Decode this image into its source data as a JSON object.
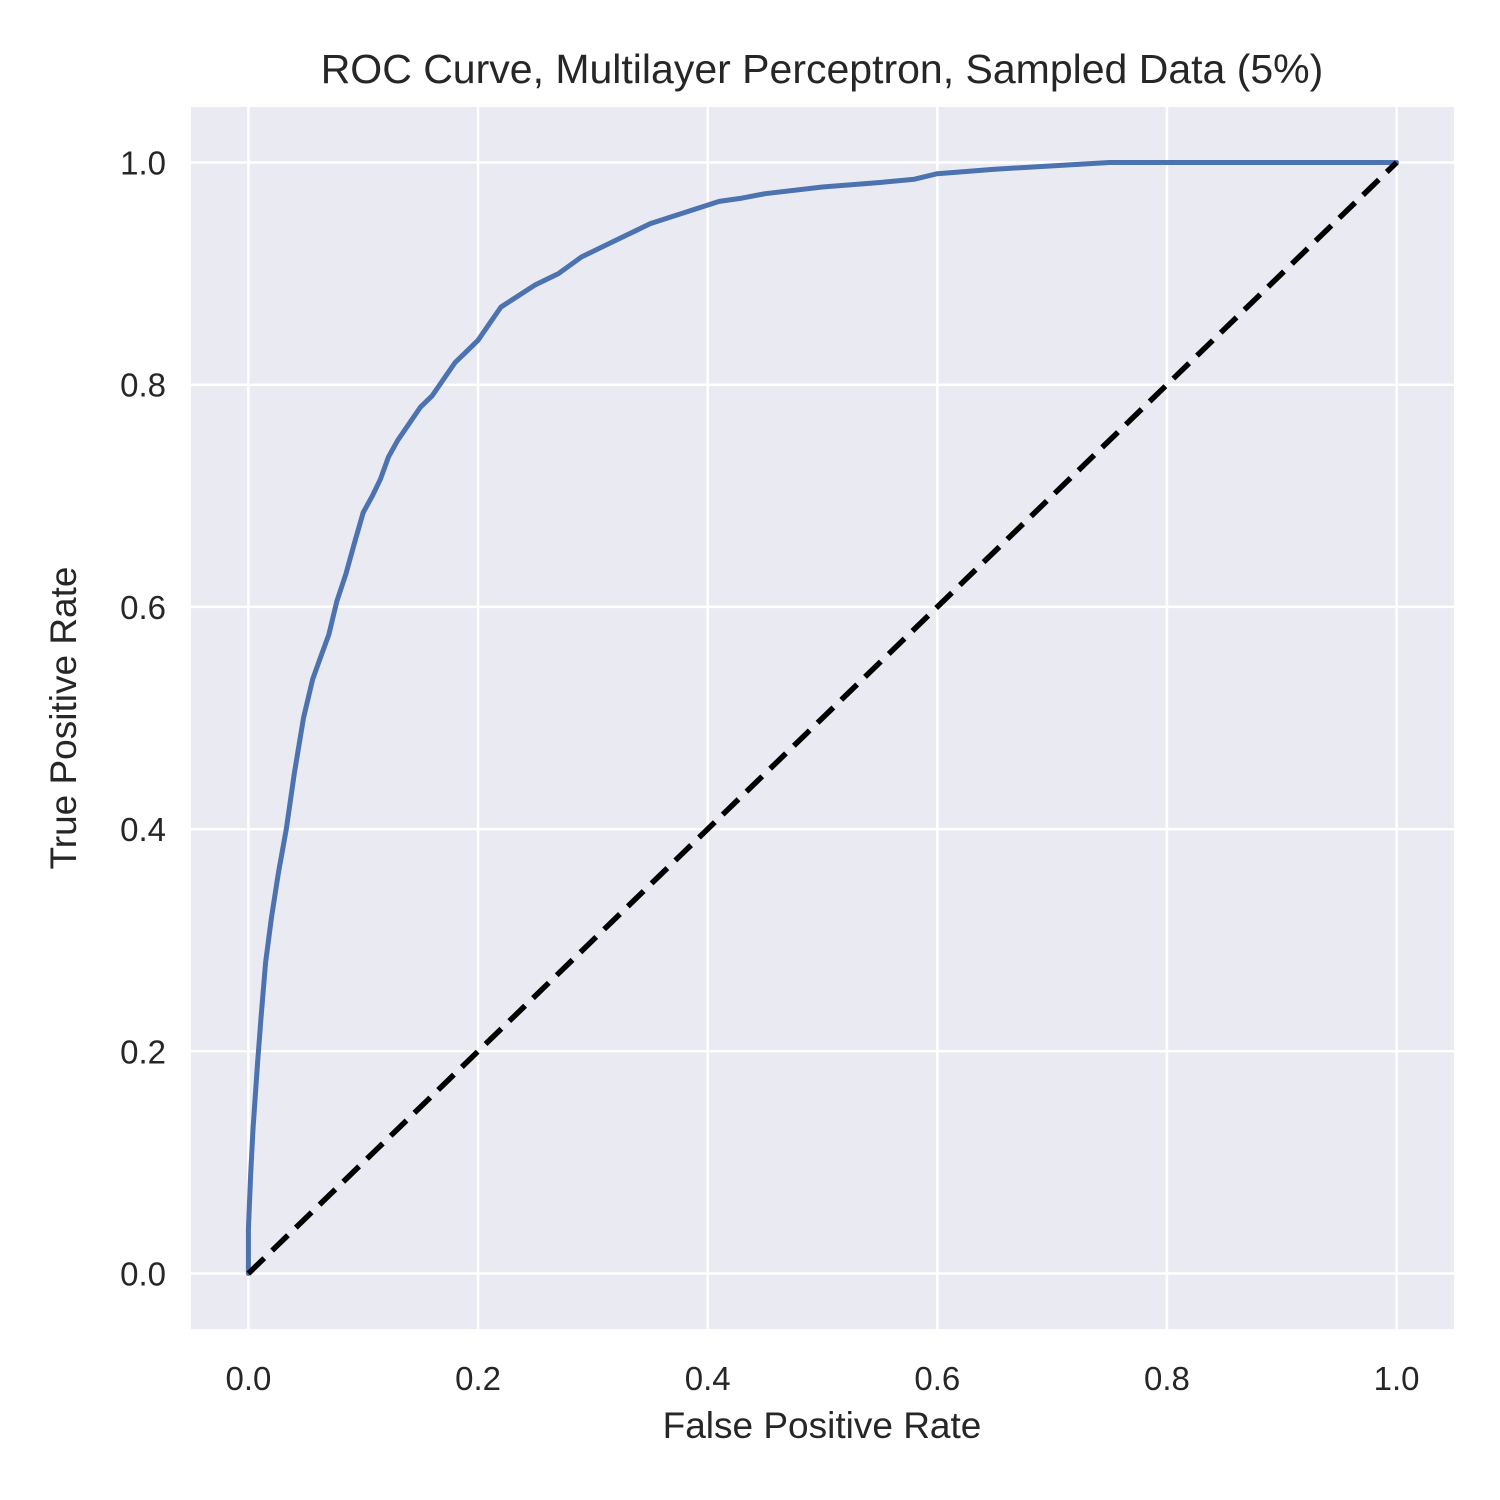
{
  "chart_data": {
    "type": "line",
    "title": "ROC Curve, Multilayer Perceptron, Sampled Data (5%)",
    "xlabel": "False Positive Rate",
    "ylabel": "True Positive Rate",
    "xlim": [
      -0.05,
      1.05
    ],
    "ylim": [
      -0.05,
      1.05
    ],
    "xticks": [
      "0.0",
      "0.2",
      "0.4",
      "0.6",
      "0.8",
      "1.0"
    ],
    "yticks": [
      "0.0",
      "0.2",
      "0.4",
      "0.6",
      "0.8",
      "1.0"
    ],
    "grid": true,
    "legend": "none",
    "colors": {
      "plot_background": "#EAEAF2",
      "grid": "#FFFFFF",
      "roc_curve": "#4C72B0",
      "chance_line": "#000000",
      "text": "#262626"
    },
    "series": [
      {
        "style": "solid",
        "x": [
          0.0,
          0.0,
          0.002,
          0.004,
          0.006,
          0.008,
          0.011,
          0.015,
          0.02,
          0.026,
          0.033,
          0.04,
          0.048,
          0.056,
          0.063,
          0.07,
          0.077,
          0.085,
          0.093,
          0.1,
          0.108,
          0.115,
          0.122,
          0.13,
          0.14,
          0.15,
          0.16,
          0.17,
          0.18,
          0.19,
          0.2,
          0.21,
          0.22,
          0.235,
          0.25,
          0.27,
          0.29,
          0.31,
          0.33,
          0.35,
          0.38,
          0.41,
          0.43,
          0.45,
          0.5,
          0.55,
          0.58,
          0.6,
          0.65,
          0.7,
          0.75,
          0.8,
          0.85,
          0.9,
          0.95,
          1.0
        ],
        "y": [
          0.0,
          0.04,
          0.09,
          0.13,
          0.16,
          0.19,
          0.23,
          0.28,
          0.32,
          0.36,
          0.4,
          0.45,
          0.5,
          0.535,
          0.555,
          0.575,
          0.605,
          0.63,
          0.66,
          0.685,
          0.7,
          0.715,
          0.735,
          0.75,
          0.765,
          0.78,
          0.79,
          0.805,
          0.82,
          0.83,
          0.84,
          0.855,
          0.87,
          0.88,
          0.89,
          0.9,
          0.915,
          0.925,
          0.935,
          0.945,
          0.955,
          0.965,
          0.968,
          0.972,
          0.978,
          0.982,
          0.985,
          0.99,
          0.994,
          0.997,
          1.0,
          1.0,
          1.0,
          1.0,
          1.0,
          1.0
        ]
      },
      {
        "style": "dashed",
        "x": [
          0.0,
          1.0
        ],
        "y": [
          0.0,
          1.0
        ]
      }
    ]
  }
}
